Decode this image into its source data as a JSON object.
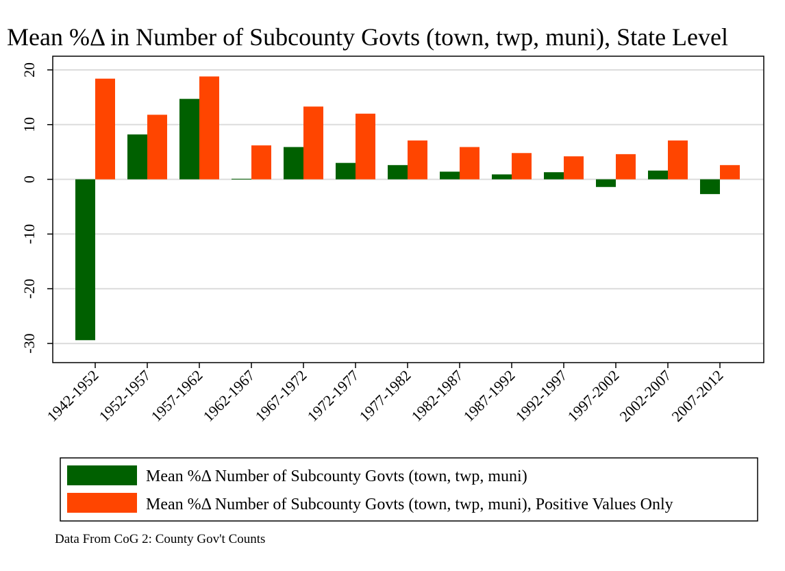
{
  "chart_data": {
    "type": "bar",
    "title": "Mean %Δ in Number of Subcounty Govts (town, twp, muni), State Level",
    "xlabel": "",
    "ylabel": "",
    "categories": [
      "1942-1952",
      "1952-1957",
      "1957-1962",
      "1962-1967",
      "1967-1972",
      "1972-1977",
      "1977-1982",
      "1982-1987",
      "1987-1992",
      "1992-1997",
      "1997-2002",
      "2002-2007",
      "2007-2012"
    ],
    "series": [
      {
        "name": "Mean %Δ Number of Subcounty Govts (town, twp, muni)",
        "color": "#006000",
        "values": [
          -29.4,
          8.2,
          14.7,
          0.1,
          5.9,
          3.0,
          2.6,
          1.4,
          0.9,
          1.3,
          -1.4,
          1.6,
          -2.7
        ]
      },
      {
        "name": "Mean %Δ Number of Subcounty Govts (town, twp, muni), Positive Values Only",
        "color": "#ff4500",
        "values": [
          18.4,
          11.8,
          18.8,
          6.2,
          13.3,
          12.0,
          7.1,
          5.9,
          4.8,
          4.2,
          4.6,
          7.1,
          2.6
        ]
      }
    ],
    "ylim": [
      -33.5,
      22.5
    ],
    "yticks": [
      -30,
      -20,
      -10,
      0,
      10,
      20
    ],
    "grid": true,
    "legend_position": "bottom"
  },
  "note": "Data From CoG 2: County Gov't Counts"
}
